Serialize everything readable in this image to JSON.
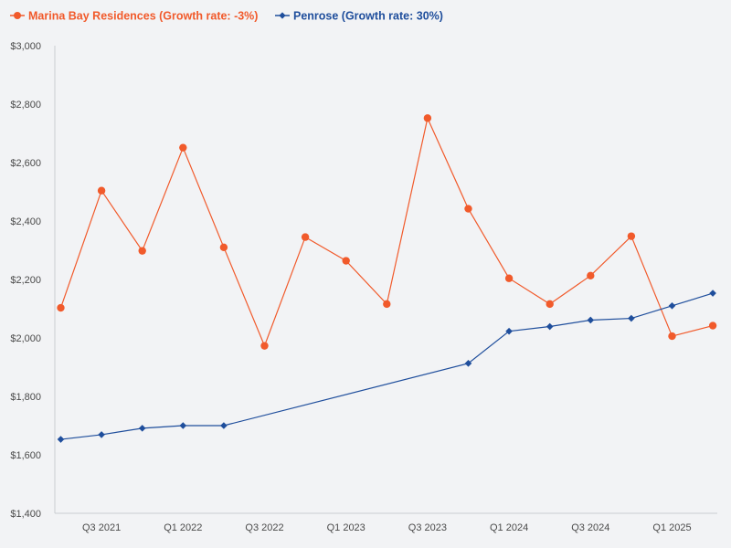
{
  "chart_data": {
    "type": "line",
    "title": "",
    "xlabel": "",
    "ylabel": "",
    "x_tick_labels": [
      "Q3 2021",
      "Q1 2022",
      "Q3 2022",
      "Q1 2023",
      "Q3 2023",
      "Q1 2024",
      "Q3 2024",
      "Q1 2025"
    ],
    "y_tick_labels": [
      "$1,400",
      "$1,600",
      "$1,800",
      "$2,000",
      "$2,200",
      "$2,400",
      "$2,600",
      "$2,800",
      "$3,000"
    ],
    "ylim": [
      1400,
      3000
    ],
    "grid": false,
    "legend_position": "top-left",
    "series": [
      {
        "name": "Marina Bay Residences (Growth rate: -3%)",
        "color": "#f15a2b",
        "marker": "circle",
        "points": [
          {
            "x": "Q2 2021",
            "y": 2103
          },
          {
            "x": "Q3 2021",
            "y": 2504
          },
          {
            "x": "Q4 2021",
            "y": 2298
          },
          {
            "x": "Q1 2022",
            "y": 2651
          },
          {
            "x": "Q2 2022",
            "y": 2310
          },
          {
            "x": "Q3 2022",
            "y": 1973
          },
          {
            "x": "Q4 2022",
            "y": 2345
          },
          {
            "x": "Q1 2023",
            "y": 2264
          },
          {
            "x": "Q2 2023",
            "y": 2116
          },
          {
            "x": "Q3 2023",
            "y": 2752
          },
          {
            "x": "Q4 2023",
            "y": 2442
          },
          {
            "x": "Q1 2024",
            "y": 2204
          },
          {
            "x": "Q2 2024",
            "y": 2116
          },
          {
            "x": "Q3 2024",
            "y": 2213
          },
          {
            "x": "Q4 2024",
            "y": 2348
          },
          {
            "x": "Q1 2025",
            "y": 2006
          },
          {
            "x": "Q2 2025",
            "y": 2042
          }
        ]
      },
      {
        "name": "Penrose (Growth rate: 30%)",
        "color": "#1f4e9c",
        "marker": "diamond",
        "points": [
          {
            "x": "Q2 2021",
            "y": 1653
          },
          {
            "x": "Q3 2021",
            "y": 1669
          },
          {
            "x": "Q4 2021",
            "y": 1691
          },
          {
            "x": "Q1 2022",
            "y": 1700
          },
          {
            "x": "Q2 2022",
            "y": 1700
          },
          {
            "x": "Q4 2023",
            "y": 1913
          },
          {
            "x": "Q1 2024",
            "y": 2023
          },
          {
            "x": "Q2 2024",
            "y": 2039
          },
          {
            "x": "Q3 2024",
            "y": 2061
          },
          {
            "x": "Q4 2024",
            "y": 2067
          },
          {
            "x": "Q1 2025",
            "y": 2110
          },
          {
            "x": "Q2 2025",
            "y": 2153
          }
        ]
      }
    ]
  }
}
